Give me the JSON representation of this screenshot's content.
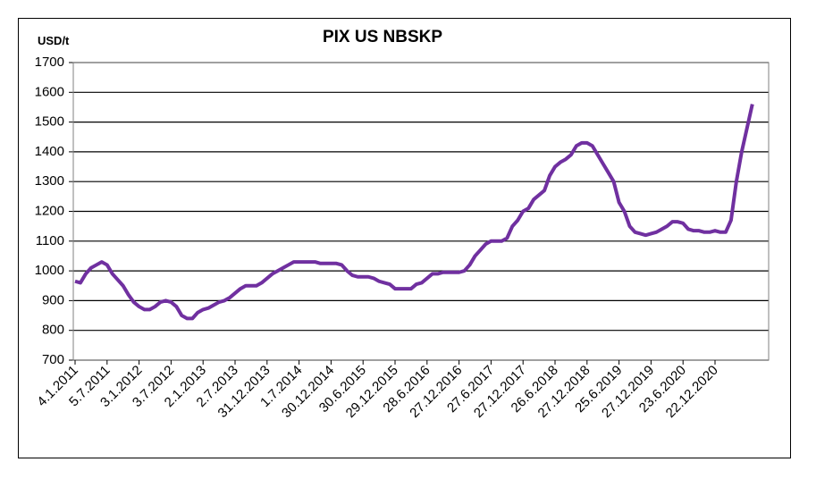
{
  "chart_data": {
    "type": "line",
    "title": "PIX US NBSKP",
    "y_label": "USD/t",
    "categories": [
      "4.1.2011",
      null,
      null,
      null,
      null,
      null,
      "5.7.2011",
      null,
      null,
      null,
      null,
      null,
      "3.1.2012",
      null,
      null,
      null,
      null,
      null,
      "3.7.2012",
      null,
      null,
      null,
      null,
      null,
      "2.1.2013",
      null,
      null,
      null,
      null,
      null,
      "2.7.2013",
      null,
      null,
      null,
      null,
      null,
      "31.12.2013",
      null,
      null,
      null,
      null,
      null,
      "1.7.2014",
      null,
      null,
      null,
      null,
      null,
      "30.12.2014",
      null,
      null,
      null,
      null,
      null,
      "30.6.2015",
      null,
      null,
      null,
      null,
      null,
      "29.12.2015",
      null,
      null,
      null,
      null,
      null,
      "28.6.2016",
      null,
      null,
      null,
      null,
      null,
      "27.12.2016",
      null,
      null,
      null,
      null,
      null,
      "27.6.2017",
      null,
      null,
      null,
      null,
      null,
      "27.12.2017",
      null,
      null,
      null,
      null,
      null,
      "26.6.2018",
      null,
      null,
      null,
      null,
      null,
      "27.12.2018",
      null,
      null,
      null,
      null,
      null,
      "25.6.2019",
      null,
      null,
      null,
      null,
      null,
      "27.12.2019",
      null,
      null,
      null,
      null,
      null,
      "23.6.2020",
      null,
      null,
      null,
      null,
      null,
      "22.12.2020",
      null,
      null,
      null,
      null,
      null,
      null,
      null
    ],
    "values": [
      965,
      960,
      990,
      1010,
      1020,
      1030,
      1020,
      990,
      970,
      950,
      920,
      895,
      880,
      870,
      870,
      880,
      895,
      900,
      895,
      880,
      850,
      840,
      840,
      860,
      870,
      875,
      885,
      895,
      900,
      910,
      925,
      940,
      950,
      950,
      950,
      960,
      975,
      990,
      1000,
      1010,
      1020,
      1030,
      1030,
      1030,
      1030,
      1030,
      1025,
      1025,
      1025,
      1025,
      1020,
      1000,
      985,
      980,
      980,
      980,
      975,
      965,
      960,
      955,
      940,
      940,
      940,
      940,
      955,
      960,
      975,
      990,
      990,
      995,
      995,
      995,
      995,
      1000,
      1020,
      1050,
      1070,
      1090,
      1100,
      1100,
      1100,
      1110,
      1150,
      1170,
      1200,
      1210,
      1240,
      1255,
      1270,
      1320,
      1350,
      1365,
      1375,
      1390,
      1420,
      1430,
      1430,
      1420,
      1390,
      1360,
      1330,
      1300,
      1230,
      1200,
      1150,
      1130,
      1125,
      1120,
      1125,
      1130,
      1140,
      1150,
      1165,
      1165,
      1160,
      1140,
      1135,
      1135,
      1130,
      1130,
      1135,
      1130,
      1130,
      1170,
      1300,
      1400,
      1480,
      1560
    ],
    "color": "#7030a0",
    "ylim": [
      700,
      1700
    ],
    "yticks": [
      700,
      800,
      900,
      1000,
      1100,
      1200,
      1300,
      1400,
      1500,
      1600,
      1700
    ],
    "grid": true
  }
}
